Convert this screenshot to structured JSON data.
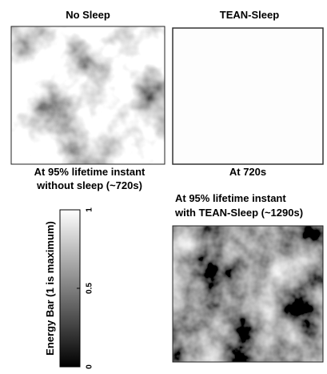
{
  "panels": [
    {
      "title": "No Sleep",
      "caption": [
        "At 95% lifetime instant",
        "without sleep (~720s)"
      ]
    },
    {
      "title": "TEAN-Sleep",
      "caption": [
        "At 720s"
      ]
    },
    {
      "caption": [
        "At 95% lifetime instant",
        "with TEAN-Sleep (~1290s)"
      ]
    }
  ],
  "colorbar": {
    "label": "Energy Bar (1 is maximum)",
    "range": [
      0,
      1
    ],
    "ticks": [
      0,
      0.5,
      1
    ]
  }
}
